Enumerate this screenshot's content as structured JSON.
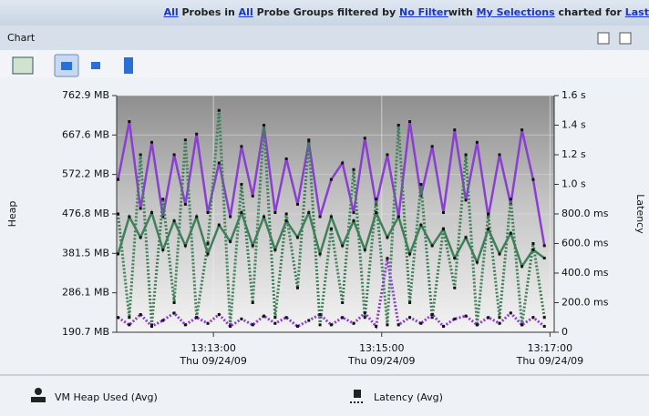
{
  "header": {
    "segments": [
      {
        "text": "All",
        "link": true
      },
      {
        "text": " Probes in "
      },
      {
        "text": "All",
        "link": true
      },
      {
        "text": " Probe Groups filtered by "
      },
      {
        "text": "No Filter",
        "link": true
      },
      {
        "text": "with "
      },
      {
        "text": "My Selections",
        "link": true
      },
      {
        "text": " charted for "
      },
      {
        "text": "Last",
        "link": true
      }
    ]
  },
  "panel": {
    "title": "Chart"
  },
  "chart_data": {
    "type": "line",
    "x": [
      "13:11:52",
      "13:12:00",
      "13:12:08",
      "13:12:16",
      "13:12:24",
      "13:12:32",
      "13:12:40",
      "13:12:48",
      "13:12:56",
      "13:13:04",
      "13:13:12",
      "13:13:20",
      "13:13:28",
      "13:13:36",
      "13:13:44",
      "13:13:52",
      "13:14:00",
      "13:14:08",
      "13:14:16",
      "13:14:24",
      "13:14:32",
      "13:14:40",
      "13:14:48",
      "13:14:56",
      "13:15:04",
      "13:15:12",
      "13:15:20",
      "13:15:28",
      "13:15:36",
      "13:15:44",
      "13:15:52",
      "13:16:00",
      "13:16:08",
      "13:16:16",
      "13:16:24",
      "13:16:32",
      "13:16:40",
      "13:16:48",
      "13:16:56"
    ],
    "xlim": [
      "13:11:51",
      "13:17:03"
    ],
    "xticks": [
      "13:13:00",
      "13:15:00",
      "13:17:00"
    ],
    "xtick_dates": [
      "Thu 09/24/09",
      "Thu 09/24/09",
      "Thu 09/24/09"
    ],
    "ylabel": "Heap",
    "y2label": "Latency",
    "ylim": [
      190.7,
      762.9
    ],
    "yticks": [
      {
        "value": 190.7,
        "label": "190.7 MB"
      },
      {
        "value": 286.1,
        "label": "286.1 MB"
      },
      {
        "value": 381.5,
        "label": "381.5 MB"
      },
      {
        "value": 476.8,
        "label": "476.8 MB"
      },
      {
        "value": 572.2,
        "label": "572.2 MB"
      },
      {
        "value": 667.6,
        "label": "667.6 MB"
      },
      {
        "value": 762.9,
        "label": "762.9 MB"
      }
    ],
    "y2lim": [
      0,
      1.6
    ],
    "y2ticks": [
      0,
      {
        "value": 0.2,
        "label": "200.0 ms"
      },
      {
        "value": 0.4,
        "label": "400.0 ms"
      },
      {
        "value": 0.6,
        "label": "600.0 ms"
      },
      {
        "value": 0.8,
        "label": "800.0 ms"
      },
      {
        "value": 1.0,
        "label": "1.0 s"
      },
      {
        "value": 1.2,
        "label": "1.2 s"
      },
      {
        "value": 1.4,
        "label": "1.4 s"
      },
      {
        "value": 1.6,
        "label": "1.6 s"
      }
    ],
    "series": [
      {
        "name": "VM Heap Used (Avg)",
        "color": "#8a3fd1",
        "style": "solid",
        "values": [
          560,
          700,
          490,
          650,
          470,
          620,
          500,
          670,
          480,
          600,
          470,
          640,
          520,
          690,
          480,
          610,
          500,
          650,
          470,
          560,
          600,
          480,
          660,
          500,
          620,
          470,
          700,
          520,
          640,
          480,
          680,
          510,
          650,
          470,
          620,
          500,
          680,
          560,
          400
        ]
      },
      {
        "name": "Latency (Avg)",
        "color": "#3f7f5a",
        "style": "dotted",
        "axis": "y2",
        "values": [
          0.8,
          0.1,
          1.2,
          0.05,
          0.9,
          0.2,
          1.3,
          0.1,
          0.6,
          1.5,
          0.05,
          1.0,
          0.2,
          1.4,
          0.1,
          0.8,
          0.3,
          1.3,
          0.05,
          0.7,
          0.2,
          1.1,
          0.1,
          0.9,
          0.05,
          1.4,
          0.2,
          1.0,
          0.1,
          0.7,
          0.3,
          1.2,
          0.05,
          0.8,
          0.1,
          0.9,
          0.05,
          0.6,
          0.1
        ]
      },
      {
        "color": "#3f7f5a",
        "style": "solid",
        "values": [
          380,
          470,
          420,
          480,
          390,
          460,
          400,
          470,
          380,
          450,
          410,
          480,
          400,
          470,
          390,
          460,
          420,
          480,
          380,
          470,
          400,
          460,
          390,
          480,
          420,
          470,
          380,
          450,
          400,
          440,
          370,
          420,
          360,
          440,
          380,
          430,
          350,
          390,
          370
        ]
      },
      {
        "color": "#8a3fd1",
        "style": "dotted",
        "axis": "y2",
        "values": [
          0.1,
          0.05,
          0.12,
          0.04,
          0.08,
          0.13,
          0.05,
          0.1,
          0.06,
          0.12,
          0.04,
          0.09,
          0.05,
          0.11,
          0.06,
          0.1,
          0.04,
          0.08,
          0.12,
          0.05,
          0.1,
          0.06,
          0.13,
          0.04,
          0.5,
          0.05,
          0.1,
          0.06,
          0.12,
          0.04,
          0.09,
          0.11,
          0.05,
          0.1,
          0.06,
          0.13,
          0.05,
          0.1,
          0.04
        ]
      }
    ],
    "grid": true
  }
}
